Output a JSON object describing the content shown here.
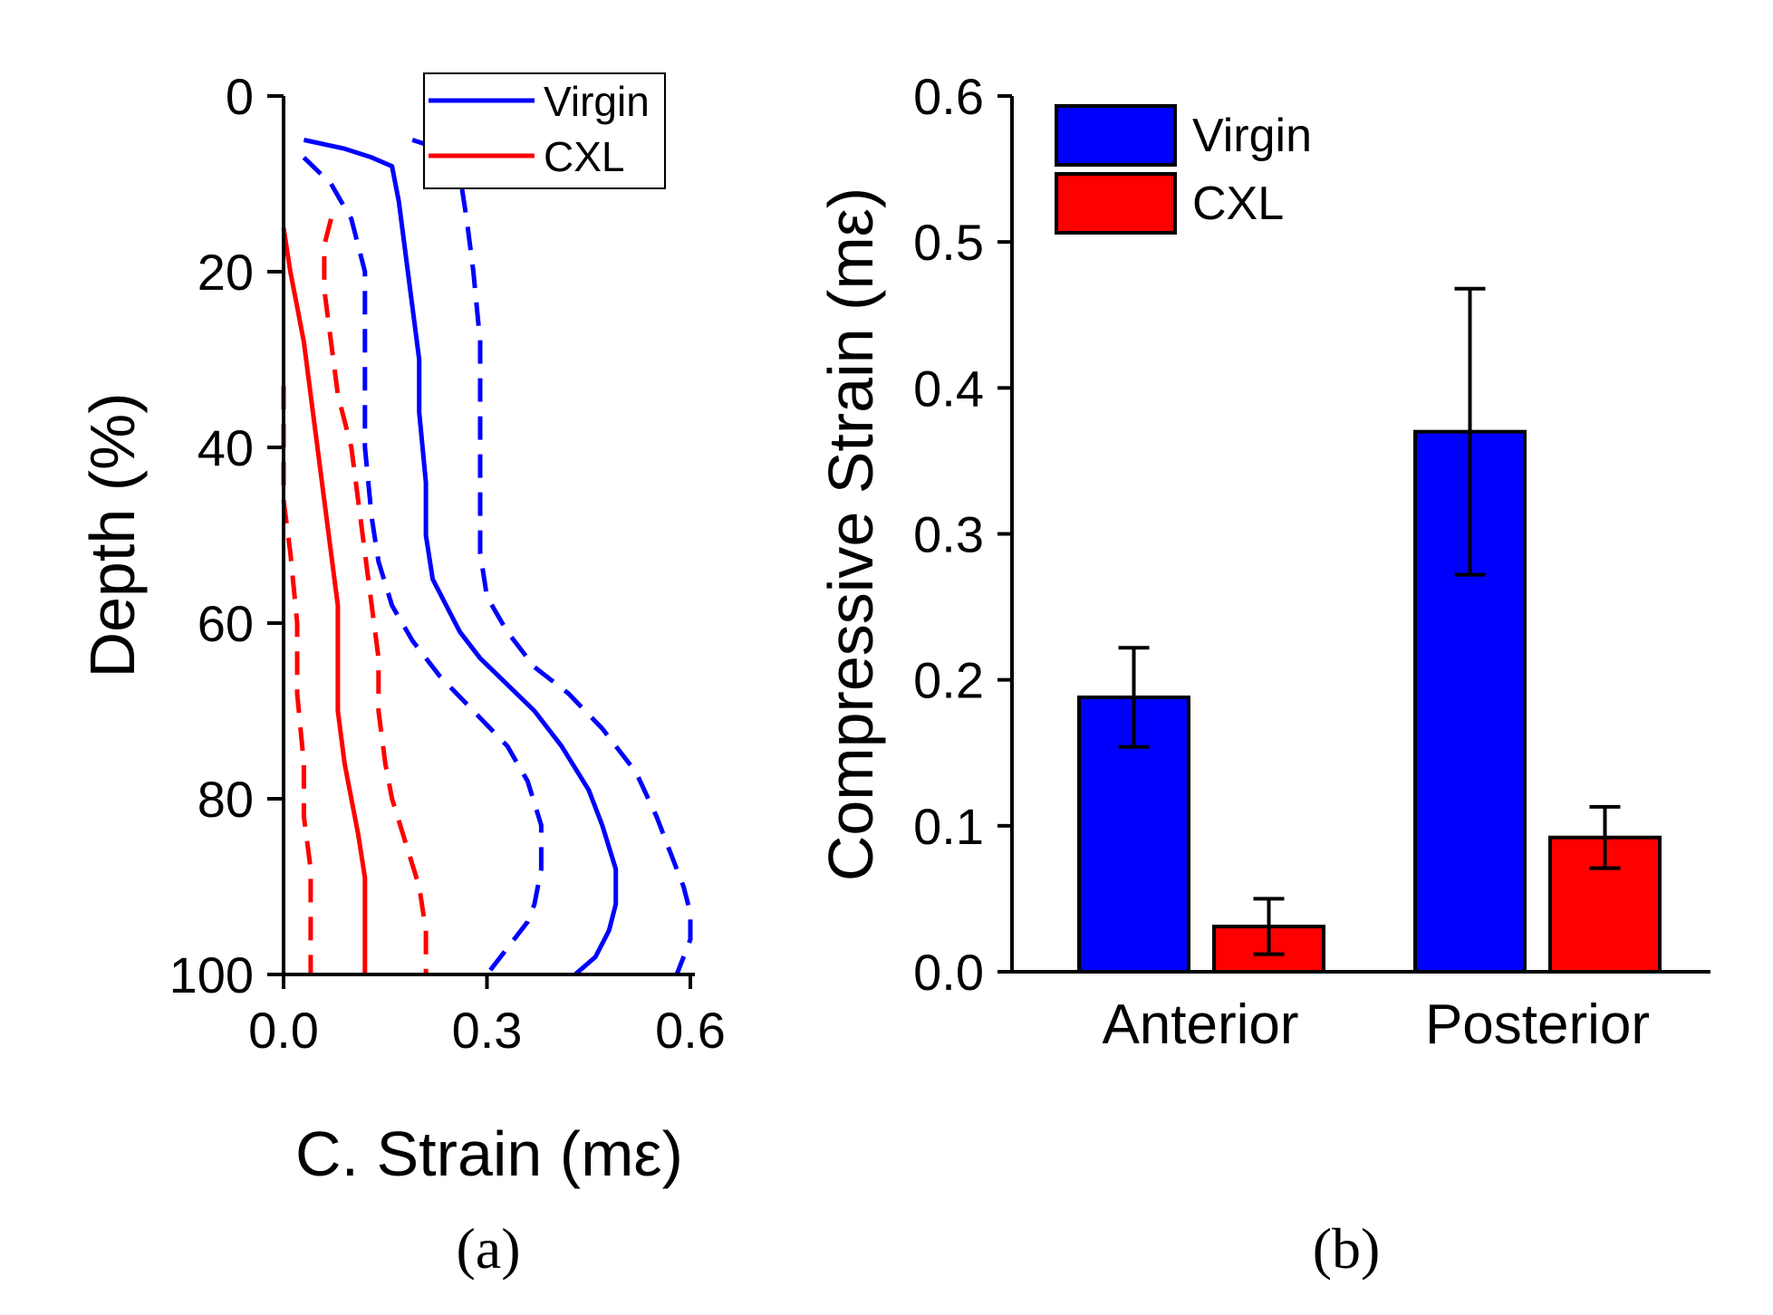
{
  "colors": {
    "virgin": "#0000ff",
    "cxl": "#ff0000",
    "axis": "#000000"
  },
  "chart_data": [
    {
      "type": "line",
      "panel_label": "(a)",
      "xlabel": "C. Strain (mε)",
      "ylabel": "Depth (%)",
      "xlim": [
        0,
        0.6
      ],
      "ylim": [
        100,
        0
      ],
      "xticks": [
        "0.0",
        "0.3",
        "0.6"
      ],
      "yticks": [
        "0",
        "20",
        "40",
        "60",
        "80",
        "100"
      ],
      "legend": {
        "position": "top-right",
        "entries": [
          "Virgin",
          "CXL"
        ]
      },
      "series": [
        {
          "name": "Virgin",
          "style": "solid",
          "color": "#0000ff",
          "points": [
            [
              0.03,
              5
            ],
            [
              0.09,
              6
            ],
            [
              0.13,
              7
            ],
            [
              0.16,
              8
            ],
            [
              0.17,
              12
            ],
            [
              0.18,
              18
            ],
            [
              0.19,
              24
            ],
            [
              0.2,
              30
            ],
            [
              0.2,
              36
            ],
            [
              0.21,
              44
            ],
            [
              0.21,
              50
            ],
            [
              0.22,
              55
            ],
            [
              0.24,
              58
            ],
            [
              0.26,
              61
            ],
            [
              0.29,
              64
            ],
            [
              0.33,
              67
            ],
            [
              0.37,
              70
            ],
            [
              0.41,
              74
            ],
            [
              0.45,
              79
            ],
            [
              0.47,
              83
            ],
            [
              0.49,
              88
            ],
            [
              0.49,
              92
            ],
            [
              0.48,
              95
            ],
            [
              0.46,
              98
            ],
            [
              0.43,
              100
            ]
          ]
        },
        {
          "name": "Virgin (lower bound)",
          "style": "dashed",
          "color": "#0000ff",
          "points": [
            [
              0.03,
              7
            ],
            [
              0.07,
              10
            ],
            [
              0.1,
              14
            ],
            [
              0.12,
              20
            ],
            [
              0.12,
              30
            ],
            [
              0.12,
              40
            ],
            [
              0.13,
              48
            ],
            [
              0.14,
              53
            ],
            [
              0.16,
              58
            ],
            [
              0.19,
              62
            ],
            [
              0.23,
              66
            ],
            [
              0.28,
              70
            ],
            [
              0.33,
              74
            ],
            [
              0.36,
              78
            ],
            [
              0.38,
              83
            ],
            [
              0.38,
              88
            ],
            [
              0.37,
              92
            ],
            [
              0.36,
              94
            ],
            [
              0.33,
              97
            ],
            [
              0.3,
              100
            ]
          ]
        },
        {
          "name": "Virgin (upper bound)",
          "style": "dashed",
          "color": "#0000ff",
          "points": [
            [
              0.19,
              5
            ],
            [
              0.23,
              6
            ],
            [
              0.26,
              9
            ],
            [
              0.27,
              14
            ],
            [
              0.28,
              20
            ],
            [
              0.29,
              28
            ],
            [
              0.29,
              36
            ],
            [
              0.29,
              44
            ],
            [
              0.29,
              52
            ],
            [
              0.3,
              57
            ],
            [
              0.33,
              61
            ],
            [
              0.37,
              65
            ],
            [
              0.42,
              68
            ],
            [
              0.47,
              72
            ],
            [
              0.52,
              77
            ],
            [
              0.55,
              82
            ],
            [
              0.57,
              86
            ],
            [
              0.59,
              90
            ],
            [
              0.6,
              93
            ],
            [
              0.6,
              96
            ],
            [
              0.58,
              100
            ]
          ]
        },
        {
          "name": "CXL",
          "style": "solid",
          "color": "#ff0000",
          "points": [
            [
              0.0,
              15
            ],
            [
              0.01,
              20
            ],
            [
              0.02,
              24
            ],
            [
              0.03,
              28
            ],
            [
              0.04,
              34
            ],
            [
              0.05,
              40
            ],
            [
              0.06,
              46
            ],
            [
              0.07,
              52
            ],
            [
              0.08,
              58
            ],
            [
              0.08,
              64
            ],
            [
              0.08,
              70
            ],
            [
              0.09,
              76
            ],
            [
              0.1,
              80
            ],
            [
              0.11,
              84
            ],
            [
              0.12,
              89
            ],
            [
              0.12,
              94
            ],
            [
              0.12,
              98
            ],
            [
              0.12,
              100
            ]
          ]
        },
        {
          "name": "CXL (lower bound)",
          "style": "dashed",
          "color": "#ff0000",
          "points": [
            [
              0.0,
              33
            ],
            [
              0.0,
              40
            ],
            [
              0.0,
              46
            ],
            [
              0.01,
              52
            ],
            [
              0.02,
              60
            ],
            [
              0.02,
              68
            ],
            [
              0.03,
              76
            ],
            [
              0.03,
              82
            ],
            [
              0.04,
              88
            ],
            [
              0.04,
              94
            ],
            [
              0.04,
              100
            ]
          ]
        },
        {
          "name": "CXL (upper bound)",
          "style": "dashed",
          "color": "#ff0000",
          "points": [
            [
              0.07,
              14
            ],
            [
              0.06,
              17
            ],
            [
              0.06,
              22
            ],
            [
              0.07,
              28
            ],
            [
              0.08,
              34
            ],
            [
              0.1,
              40
            ],
            [
              0.11,
              46
            ],
            [
              0.12,
              52
            ],
            [
              0.13,
              58
            ],
            [
              0.14,
              64
            ],
            [
              0.14,
              70
            ],
            [
              0.15,
              76
            ],
            [
              0.16,
              80
            ],
            [
              0.18,
              85
            ],
            [
              0.2,
              90
            ],
            [
              0.21,
              95
            ],
            [
              0.21,
              100
            ]
          ]
        }
      ]
    },
    {
      "type": "bar",
      "panel_label": "(b)",
      "xlabel": "",
      "ylabel": "Compressive Strain (mε)",
      "ylim": [
        0,
        0.6
      ],
      "yticks": [
        "0.0",
        "0.1",
        "0.2",
        "0.3",
        "0.4",
        "0.5",
        "0.6"
      ],
      "categories": [
        "Anterior",
        "Posterior"
      ],
      "legend": {
        "position": "top-left",
        "entries": [
          "Virgin",
          "CXL"
        ]
      },
      "series": [
        {
          "name": "Virgin",
          "color": "#0000ff",
          "values": [
            0.188,
            0.37
          ],
          "errors": [
            0.034,
            0.098
          ]
        },
        {
          "name": "CXL",
          "color": "#ff0000",
          "values": [
            0.031,
            0.092
          ],
          "errors": [
            0.019,
            0.021
          ]
        }
      ]
    }
  ]
}
